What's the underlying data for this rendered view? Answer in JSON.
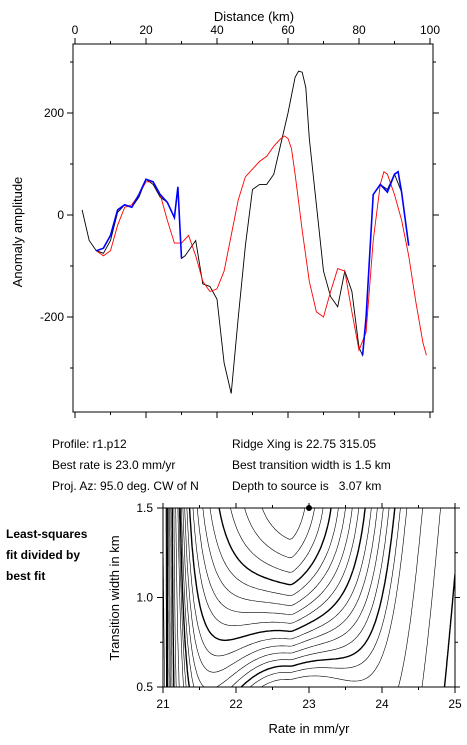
{
  "chart_data": [
    {
      "type": "line",
      "xlabel": "Distance (km)",
      "ylabel": "Anomaly amplitude",
      "xlim": [
        0,
        100
      ],
      "ylim": [
        -380,
        300
      ],
      "xticks": [
        0,
        20,
        40,
        60,
        80,
        100
      ],
      "yticks": [
        200,
        0,
        -200
      ],
      "series": [
        {
          "color": "#000000",
          "x": [
            2,
            4,
            6,
            8,
            10,
            12,
            14,
            16,
            18,
            20,
            22,
            24,
            26,
            28,
            29,
            30,
            31,
            32,
            34,
            36,
            38,
            40,
            42,
            44,
            46,
            48,
            50,
            52,
            54,
            56,
            58,
            60,
            62,
            63,
            64,
            65,
            66,
            68,
            70,
            72,
            74,
            76,
            77,
            78,
            80,
            81,
            82,
            84,
            86,
            88,
            90,
            92,
            94
          ],
          "y": [
            10,
            -50,
            -70,
            -75,
            -50,
            5,
            20,
            15,
            35,
            70,
            60,
            35,
            25,
            -5,
            55,
            -85,
            -80,
            -70,
            -50,
            -135,
            -140,
            -165,
            -290,
            -350,
            -200,
            -60,
            50,
            60,
            60,
            80,
            140,
            200,
            270,
            282,
            280,
            250,
            150,
            20,
            -110,
            -160,
            -180,
            -110,
            -130,
            -150,
            -260,
            -275,
            -200,
            40,
            60,
            50,
            80,
            45,
            -60
          ]
        },
        {
          "color": "#ff0000",
          "x": [
            6,
            8,
            10,
            12,
            14,
            16,
            18,
            20,
            22,
            24,
            26,
            28,
            30,
            32,
            34,
            36,
            38,
            40,
            42,
            44,
            46,
            48,
            50,
            52,
            54,
            56,
            58,
            59,
            60,
            61,
            62,
            64,
            66,
            68,
            70,
            72,
            74,
            76,
            78,
            80,
            82,
            84,
            86,
            87,
            88,
            90,
            92,
            94,
            96,
            98,
            99
          ],
          "y": [
            -70,
            -80,
            -70,
            -20,
            15,
            20,
            40,
            65,
            65,
            40,
            -10,
            -55,
            -55,
            -40,
            -80,
            -130,
            -150,
            -145,
            -110,
            -40,
            30,
            75,
            90,
            105,
            115,
            135,
            150,
            155,
            150,
            130,
            80,
            -30,
            -130,
            -190,
            -200,
            -150,
            -105,
            -110,
            -190,
            -265,
            -230,
            -50,
            60,
            85,
            80,
            40,
            -10,
            -80,
            -170,
            -250,
            -275
          ]
        },
        {
          "color": "#0000ff",
          "x": [
            6,
            8,
            10,
            12,
            14,
            16,
            18,
            20,
            22,
            24,
            26,
            28,
            29,
            30
          ],
          "y": [
            -70,
            -65,
            -40,
            10,
            20,
            15,
            40,
            70,
            65,
            40,
            25,
            -5,
            55,
            -85
          ]
        },
        {
          "color": "#0000ff",
          "x": [
            81,
            82,
            84,
            86,
            88,
            90,
            91,
            92,
            94
          ],
          "y": [
            -275,
            -200,
            40,
            60,
            45,
            80,
            85,
            45,
            -60
          ]
        }
      ]
    },
    {
      "type": "contour",
      "xlabel": "Rate in mm/yr",
      "ylabel": "Transition width in km",
      "xlim": [
        21,
        25
      ],
      "ylim": [
        0.5,
        1.5
      ],
      "xticks": [
        21,
        22,
        23,
        24,
        25
      ],
      "yticks": [
        1.5,
        1.0,
        0.5
      ],
      "best_fit_marker": {
        "x": 23.0,
        "y": 1.5
      }
    }
  ],
  "info": {
    "profile": "Profile: r1.p12",
    "best_rate": "Best rate is 23.0 mm/yr",
    "proj_az": "Proj. Az: 95.0 deg. CW of N",
    "ridge_xing": "Ridge Xing is 22.75 315.05",
    "best_width": "Best transition width is 1.5 km",
    "depth": "Depth to source is   3.07 km"
  },
  "side_note": [
    "Least-squares",
    "fit divided by",
    "best fit"
  ]
}
